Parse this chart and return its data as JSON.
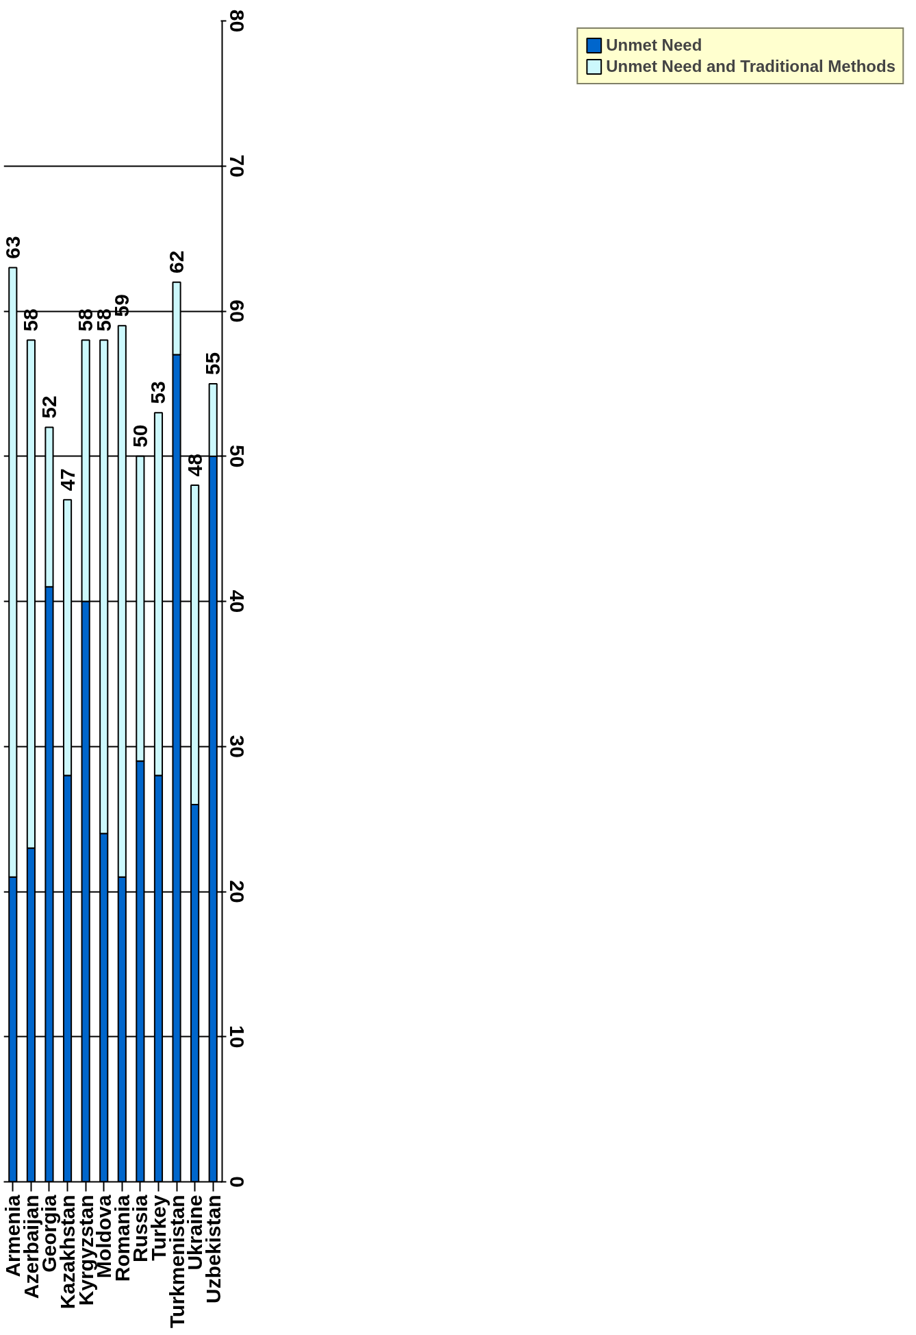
{
  "chart_data": {
    "type": "bar",
    "stacked": true,
    "categories": [
      "Armenia",
      "Azerbaijan",
      "Georgia",
      "Kazakhstan",
      "Kyrgyzstan",
      "Moldova",
      "Romania",
      "Russia",
      "Turkey",
      "Turkmenistan",
      "Ukraine",
      "Uzbekistan"
    ],
    "series": [
      {
        "name": "Unmet Need",
        "color": "#0066cc",
        "values": [
          21,
          23,
          41,
          28,
          40,
          24,
          21,
          29,
          28,
          57,
          26,
          50
        ]
      },
      {
        "name": "Unmet Need and Traditional Methods",
        "color": "#ccf8fc",
        "values": [
          42,
          35,
          11,
          19,
          18,
          34,
          38,
          21,
          25,
          5,
          22,
          5
        ]
      }
    ],
    "totals": [
      "63",
      "58",
      "52",
      "47",
      "58",
      "58",
      "59",
      "50",
      "53",
      "62",
      "48",
      "55"
    ],
    "ylim": [
      0,
      80
    ],
    "yticks": [
      0,
      10,
      20,
      30,
      40,
      50,
      60,
      70,
      80
    ],
    "grid": "y",
    "legend": "right"
  }
}
